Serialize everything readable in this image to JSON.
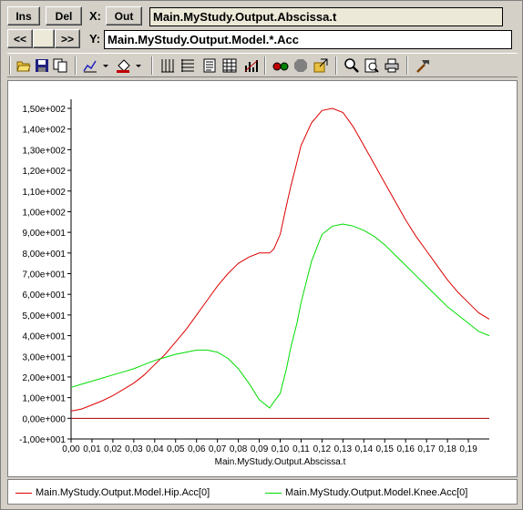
{
  "controls": {
    "ins_label": "Ins",
    "del_label": "Del",
    "x_label": "X:",
    "out_label": "Out",
    "x_expression": "Main.MyStudy.Output.Abscissa.t",
    "prev_label": "<<",
    "next_label": ">>",
    "y_label": "Y:",
    "y_expression": "Main.MyStudy.Output.Model.*.Acc"
  },
  "toolbar": {
    "icons": [
      "open-icon",
      "save-icon",
      "copy-icon",
      "chart-type-icon",
      "fill-icon",
      "grid-vertical-icon",
      "grid-horizontal-icon",
      "document-icon",
      "table-icon",
      "stats-icon",
      "glasses-icon",
      "stop-icon",
      "export-icon",
      "zoom-icon",
      "print-preview-icon",
      "print-icon",
      "tool-icon"
    ]
  },
  "colors": {
    "hip": "#dd0000",
    "knee": "#00dd00",
    "zero_line": "#aa0000"
  },
  "chart_data": {
    "type": "line",
    "xlabel": "Main.MyStudy.Output.Abscissa.t",
    "ylabel": "",
    "xlim": [
      0,
      0.2
    ],
    "ylim": [
      -10,
      150
    ],
    "x_ticks": [
      "0,00",
      "0,01",
      "0,02",
      "0,03",
      "0,04",
      "0,05",
      "0,06",
      "0,07",
      "0,08",
      "0,09",
      "0,10",
      "0,11",
      "0,12",
      "0,13",
      "0,14",
      "0,15",
      "0,16",
      "0,17",
      "0,18",
      "0,19"
    ],
    "y_ticks": [
      "1,50e+002",
      "1,40e+002",
      "1,30e+002",
      "1,20e+002",
      "1,10e+002",
      "1,00e+002",
      "9,00e+001",
      "8,00e+001",
      "7,00e+001",
      "6,00e+001",
      "5,00e+001",
      "4,00e+001",
      "3,00e+001",
      "2,00e+001",
      "1,00e+001",
      "0,00e+000",
      "-1,00e+001"
    ],
    "y_tick_values": [
      150,
      140,
      130,
      120,
      110,
      100,
      90,
      80,
      70,
      60,
      50,
      40,
      30,
      20,
      10,
      0,
      -10
    ],
    "x": [
      0.0,
      0.005,
      0.01,
      0.015,
      0.02,
      0.025,
      0.03,
      0.035,
      0.04,
      0.045,
      0.05,
      0.055,
      0.06,
      0.065,
      0.07,
      0.075,
      0.08,
      0.085,
      0.09,
      0.095,
      0.097,
      0.1,
      0.103,
      0.105,
      0.108,
      0.11,
      0.115,
      0.12,
      0.125,
      0.13,
      0.135,
      0.14,
      0.145,
      0.15,
      0.155,
      0.16,
      0.165,
      0.17,
      0.175,
      0.18,
      0.185,
      0.19,
      0.195,
      0.2
    ],
    "series": [
      {
        "name": "Main.MyStudy.Output.Model.Hip.Acc[0]",
        "values": [
          3.5,
          4.5,
          6.5,
          8.5,
          11,
          14,
          17,
          21,
          26,
          31,
          37,
          43,
          50,
          57,
          64,
          70,
          75,
          78,
          80,
          80,
          82,
          89,
          103,
          112,
          124,
          132,
          143,
          149,
          150,
          148,
          141,
          132,
          123,
          114,
          105,
          96,
          88,
          81,
          74,
          67,
          61,
          56,
          51,
          48
        ]
      },
      {
        "name": "Main.MyStudy.Output.Model.Knee.Acc[0]",
        "values": [
          15,
          16.5,
          18,
          19.5,
          21,
          22.5,
          24,
          26,
          28,
          29.5,
          31,
          32,
          33,
          33,
          32,
          29,
          24,
          17,
          9,
          5,
          8,
          12,
          24,
          34,
          46,
          56,
          76,
          89,
          93,
          94,
          93,
          91,
          88,
          84,
          79,
          74,
          69,
          64,
          59,
          54,
          50,
          46,
          42,
          40
        ]
      }
    ],
    "zero_line": true,
    "grid": false,
    "legend": "bottom"
  }
}
